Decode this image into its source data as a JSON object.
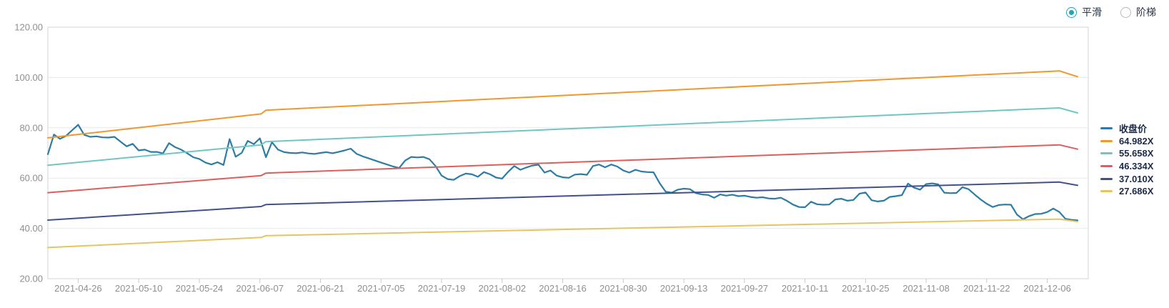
{
  "controls": {
    "smooth_label": "平滑",
    "step_label": "阶梯",
    "selected": "smooth",
    "accent_color": "#25a3b8"
  },
  "axis": {
    "label_color": "#8f8f8f",
    "grid_color": "#e9e9e9",
    "border_color": "#d5d5d5",
    "tick_color": "#c9c9c9"
  },
  "chart_data": {
    "type": "line",
    "title": "",
    "xlabel": "",
    "ylabel": "",
    "ylim": [
      20,
      120
    ],
    "x_max": 170,
    "grid": true,
    "legend_position": "right",
    "y_ticks": [
      {
        "label": "120.00",
        "v": 120
      },
      {
        "label": "100.00",
        "v": 100
      },
      {
        "label": "80.00",
        "v": 80
      },
      {
        "label": "60.00",
        "v": 60
      },
      {
        "label": "40.00",
        "v": 40
      },
      {
        "label": "20.00",
        "v": 20
      }
    ],
    "x_ticks": [
      {
        "label": "2021-04-26",
        "day": 5
      },
      {
        "label": "2021-05-10",
        "day": 15
      },
      {
        "label": "2021-05-24",
        "day": 25
      },
      {
        "label": "2021-06-07",
        "day": 35
      },
      {
        "label": "2021-06-21",
        "day": 45
      },
      {
        "label": "2021-07-05",
        "day": 55
      },
      {
        "label": "2021-07-19",
        "day": 65
      },
      {
        "label": "2021-08-02",
        "day": 75
      },
      {
        "label": "2021-08-16",
        "day": 85
      },
      {
        "label": "2021-08-30",
        "day": 95
      },
      {
        "label": "2021-09-13",
        "day": 105
      },
      {
        "label": "2021-09-27",
        "day": 115
      },
      {
        "label": "2021-10-11",
        "day": 125
      },
      {
        "label": "2021-10-25",
        "day": 135
      },
      {
        "label": "2021-11-08",
        "day": 145
      },
      {
        "label": "2021-11-22",
        "day": 155
      },
      {
        "label": "2021-12-06",
        "day": 165
      }
    ],
    "series": [
      {
        "id": "close",
        "name": "收盘价",
        "color": "#2d7ca3",
        "width": 2.2,
        "values": [
          69.5,
          77.3,
          75.6,
          76.8,
          79.0,
          81.2,
          77.2,
          76.4,
          76.6,
          76.2,
          76.1,
          76.4,
          74.5,
          72.6,
          73.6,
          71.0,
          71.3,
          70.4,
          70.4,
          69.8,
          73.9,
          72.3,
          71.3,
          69.9,
          68.3,
          67.6,
          66.2,
          65.4,
          66.3,
          65.2,
          75.5,
          68.5,
          70.0,
          74.8,
          73.5,
          75.8,
          68.3,
          74.3,
          71.3,
          70.3,
          70.0,
          69.9,
          70.2,
          69.8,
          69.6,
          70.0,
          70.3,
          69.9,
          70.4,
          71.0,
          71.7,
          69.6,
          68.6,
          67.8,
          67.0,
          66.2,
          65.4,
          64.6,
          64.0,
          67.0,
          68.4,
          68.2,
          68.4,
          67.5,
          64.8,
          61.0,
          59.6,
          59.3,
          60.8,
          61.8,
          61.5,
          60.5,
          62.4,
          61.5,
          60.2,
          59.8,
          62.5,
          64.8,
          63.3,
          64.2,
          65.0,
          65.3,
          62.2,
          63.0,
          61.0,
          60.3,
          60.1,
          61.4,
          61.6,
          61.3,
          64.8,
          65.4,
          64.3,
          65.4,
          64.6,
          63.0,
          62.2,
          63.3,
          62.6,
          62.4,
          62.3,
          58.0,
          54.6,
          54.2,
          55.4,
          55.8,
          55.6,
          54.0,
          53.5,
          53.3,
          52.2,
          53.5,
          53.0,
          53.4,
          52.8,
          53.0,
          52.5,
          52.2,
          52.4,
          51.9,
          51.8,
          52.2,
          51.0,
          49.5,
          48.5,
          48.4,
          50.6,
          49.6,
          49.4,
          49.5,
          51.5,
          51.8,
          51.0,
          51.3,
          53.8,
          54.3,
          51.2,
          50.7,
          51.0,
          52.5,
          52.8,
          53.2,
          57.8,
          56.2,
          55.4,
          57.6,
          57.9,
          57.5,
          54.2,
          54.0,
          54.1,
          56.4,
          55.6,
          53.5,
          51.5,
          49.8,
          48.5,
          49.3,
          49.5,
          49.4,
          45.5,
          43.6,
          44.9,
          45.7,
          45.8,
          46.5,
          47.9,
          46.5,
          43.8,
          43.4,
          43.2
        ]
      },
      {
        "id": "band-64982",
        "name": "64.982X",
        "color": "#f0982f",
        "width": 2,
        "points": [
          [
            0,
            76.0
          ],
          [
            35.2,
            85.5
          ],
          [
            36,
            87.0
          ],
          [
            167,
            102.6
          ],
          [
            170,
            100.3
          ]
        ]
      },
      {
        "id": "band-55658",
        "name": "55.658X",
        "color": "#6fc7c3",
        "width": 2,
        "points": [
          [
            0,
            65.1
          ],
          [
            35.2,
            73.2
          ],
          [
            36,
            74.5
          ],
          [
            167,
            87.9
          ],
          [
            170,
            85.9
          ]
        ]
      },
      {
        "id": "band-46334",
        "name": "46.334X",
        "color": "#dc5f5d",
        "width": 2,
        "points": [
          [
            0,
            54.2
          ],
          [
            35.2,
            61.0
          ],
          [
            36,
            62.0
          ],
          [
            167,
            73.2
          ],
          [
            170,
            71.5
          ]
        ]
      },
      {
        "id": "band-37010",
        "name": "37.010X",
        "color": "#42518c",
        "width": 2,
        "points": [
          [
            0,
            43.3
          ],
          [
            35.2,
            48.7
          ],
          [
            36,
            49.5
          ],
          [
            167,
            58.4
          ],
          [
            170,
            57.1
          ]
        ]
      },
      {
        "id": "band-27686",
        "name": "27.686X",
        "color": "#e5c464",
        "width": 2,
        "points": [
          [
            0,
            32.4
          ],
          [
            35.2,
            36.4
          ],
          [
            36,
            37.1
          ],
          [
            167,
            43.7
          ],
          [
            170,
            42.7
          ]
        ]
      }
    ]
  }
}
